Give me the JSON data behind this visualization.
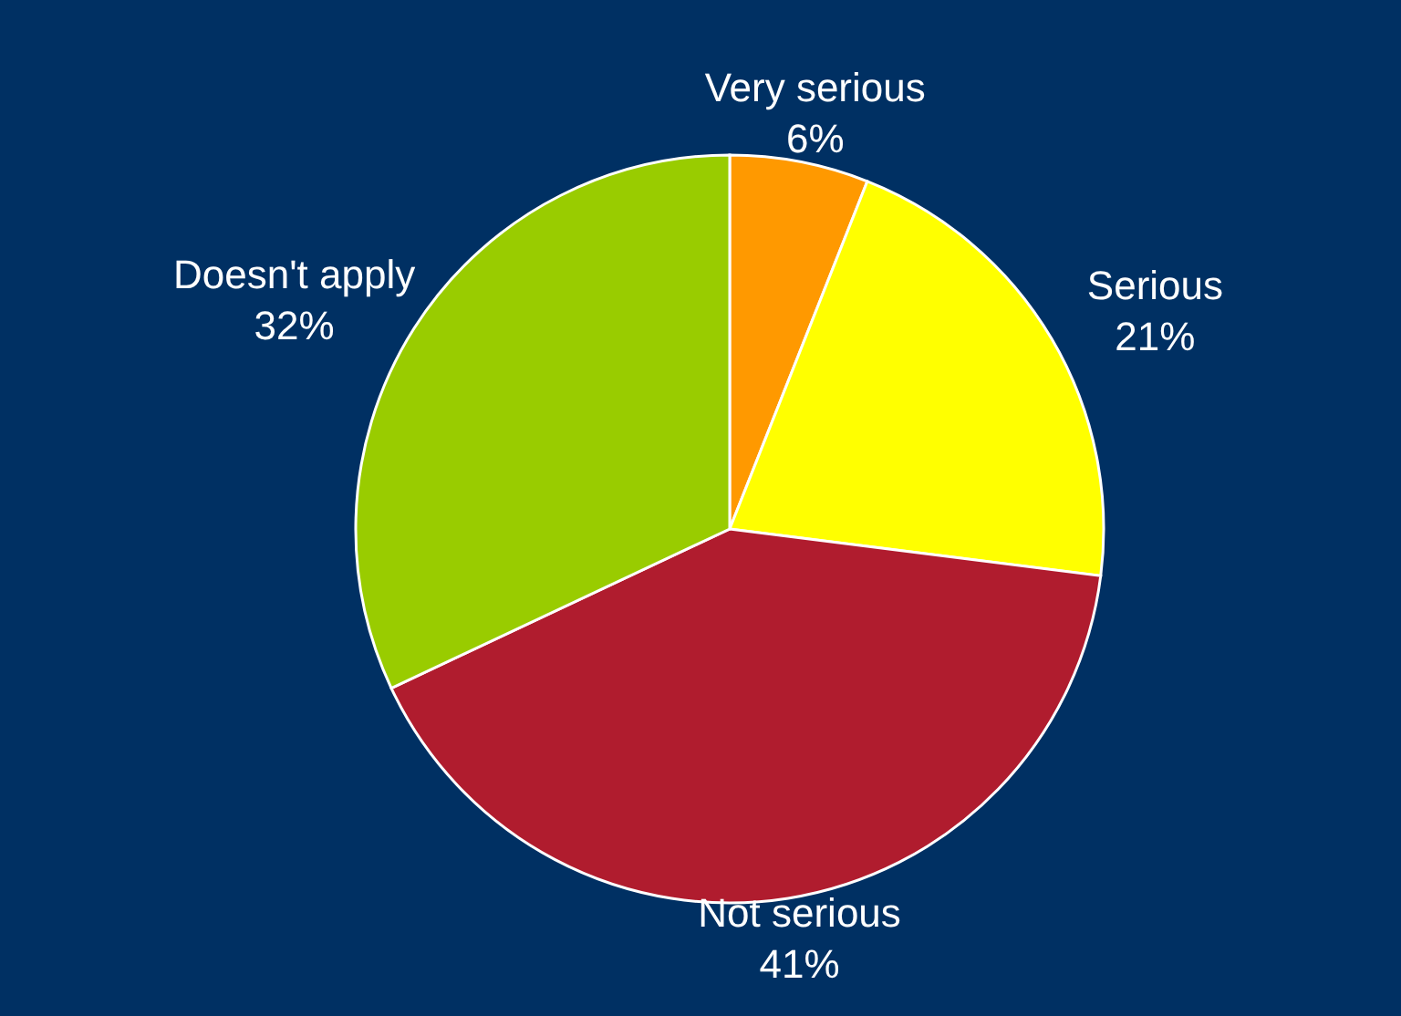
{
  "chart_data": {
    "type": "pie",
    "categories": [
      "Very serious",
      "Serious",
      "Not serious",
      "Doesn't apply"
    ],
    "values": [
      6,
      21,
      41,
      32
    ],
    "value_labels": [
      "6%",
      "21%",
      "41%",
      "32%"
    ],
    "colors": [
      "#ff9900",
      "#ffff00",
      "#b01c2e",
      "#99cc00"
    ],
    "legend": false
  }
}
